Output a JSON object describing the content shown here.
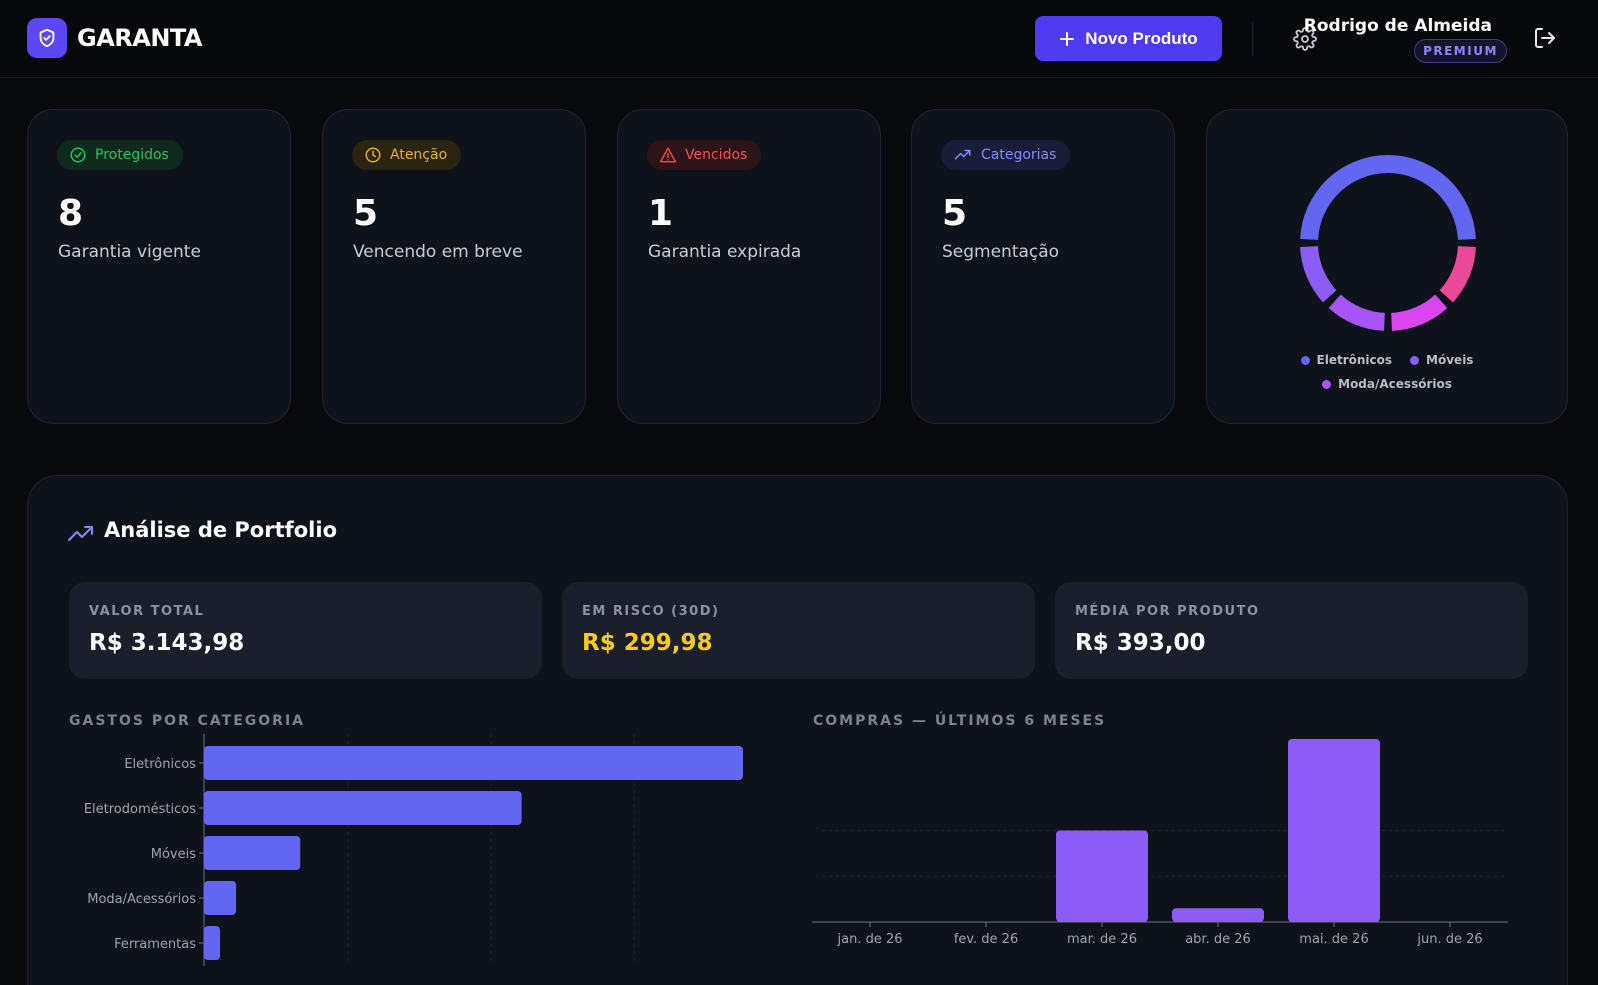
{
  "header": {
    "brand": "GARANTA",
    "new_product_label": "Novo Produto",
    "user_name": "Rodrigo de Almeida",
    "user_badge": "PREMIUM"
  },
  "stats": [
    {
      "badge": "Protegidos",
      "value": "8",
      "caption": "Garantia vigente",
      "color": "#22c55e",
      "icon": "check-circle-icon"
    },
    {
      "badge": "Atenção",
      "value": "5",
      "caption": "Vencendo em breve",
      "color": "#eab308",
      "icon": "clock-icon"
    },
    {
      "badge": "Vencidos",
      "value": "1",
      "caption": "Garantia expirada",
      "color": "#ef4444",
      "icon": "warning-triangle-icon"
    },
    {
      "badge": "Categorias",
      "value": "5",
      "caption": "Segmentação",
      "color": "#818cf8",
      "icon": "trending-up-icon"
    }
  ],
  "donut": {
    "legend": [
      {
        "label": "Eletrônicos",
        "color": "#6366f1"
      },
      {
        "label": "Móveis",
        "color": "#8b5cf6"
      },
      {
        "label": "Moda/Acessórios",
        "color": "#a855f7"
      }
    ],
    "segments": [
      {
        "color": "#6366f1",
        "value": 8
      },
      {
        "color": "#ec4899",
        "value": 2
      },
      {
        "color": "#d946ef",
        "value": 2
      },
      {
        "color": "#a855f7",
        "value": 2
      },
      {
        "color": "#8b5cf6",
        "value": 2
      }
    ]
  },
  "portfolio": {
    "title": "Análise de Portfolio",
    "metrics": [
      {
        "label": "VALOR TOTAL",
        "value": "R$ 3.143,98",
        "color": "#ffffff"
      },
      {
        "label": "EM RISCO (30D)",
        "value": "R$ 299,98",
        "color": "#facc15"
      },
      {
        "label": "MÉDIA POR PRODUTO",
        "value": "R$ 393,00",
        "color": "#ffffff"
      }
    ],
    "category_chart_label": "GASTOS POR CATEGORIA",
    "monthly_chart_label": "COMPRAS — ÚLTIMOS 6 MESES"
  },
  "chart_data": [
    {
      "type": "bar",
      "orientation": "horizontal",
      "title": "GASTOS POR CATEGORIA",
      "categories": [
        "Eletrônicos",
        "Eletrodomésticos",
        "Móveis",
        "Moda/Acessórios",
        "Ferramentas"
      ],
      "values": [
        1680,
        990,
        300,
        100,
        50
      ],
      "color": "#6366f1",
      "grid": true
    },
    {
      "type": "bar",
      "title": "COMPRAS — ÚLTIMOS 6 MESES",
      "categories": [
        "jan. de 26",
        "fev. de 26",
        "mar. de 26",
        "abr. de 26",
        "mai. de 26",
        "jun. de 26"
      ],
      "values": [
        0,
        0,
        1000,
        150,
        2000,
        0
      ],
      "ylim": [
        0,
        2000
      ],
      "color": "#8b5cf6",
      "grid": true
    }
  ]
}
